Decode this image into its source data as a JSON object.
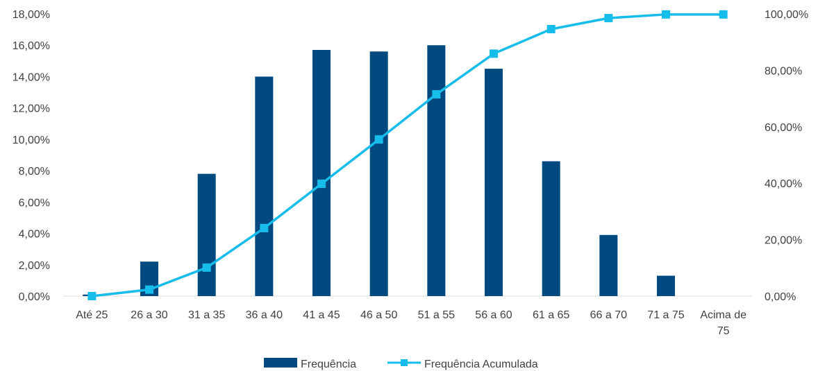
{
  "chart_data": {
    "type": "bar",
    "categories": [
      "Até 25",
      "26 a 30",
      "31 a 35",
      "36 a 40",
      "41 a 45",
      "46 a 50",
      "51 a 55",
      "56 a 60",
      "61 a 65",
      "66 a 70",
      "71 a 75",
      "Acima de 75"
    ],
    "series": [
      {
        "name": "Frequência",
        "type": "bar",
        "axis": "left",
        "color": "#004a80",
        "values": [
          0.1,
          2.2,
          7.8,
          14.0,
          15.7,
          15.6,
          16.0,
          14.5,
          8.6,
          3.9,
          1.3,
          0.0
        ]
      },
      {
        "name": "Frequência Acumulada",
        "type": "line",
        "axis": "right",
        "color": "#16bdea",
        "values": [
          0.0,
          2.3,
          10.1,
          24.1,
          39.8,
          55.5,
          71.5,
          85.9,
          94.6,
          98.5,
          99.8,
          99.8
        ]
      }
    ],
    "left_axis": {
      "min": 0,
      "max": 18,
      "step": 2,
      "tick_labels": [
        "0,00%",
        "2,00%",
        "4,00%",
        "6,00%",
        "8,00%",
        "10,00%",
        "12,00%",
        "14,00%",
        "16,00%",
        "18,00%"
      ]
    },
    "right_axis": {
      "min": 0,
      "max": 100,
      "step": 20,
      "tick_labels": [
        "0,00%",
        "20,00%",
        "40,00%",
        "60,00%",
        "80,00%",
        "100,00%"
      ]
    },
    "grid": false,
    "legend_position": "bottom",
    "title": "",
    "xlabel": "",
    "ylabel": ""
  }
}
